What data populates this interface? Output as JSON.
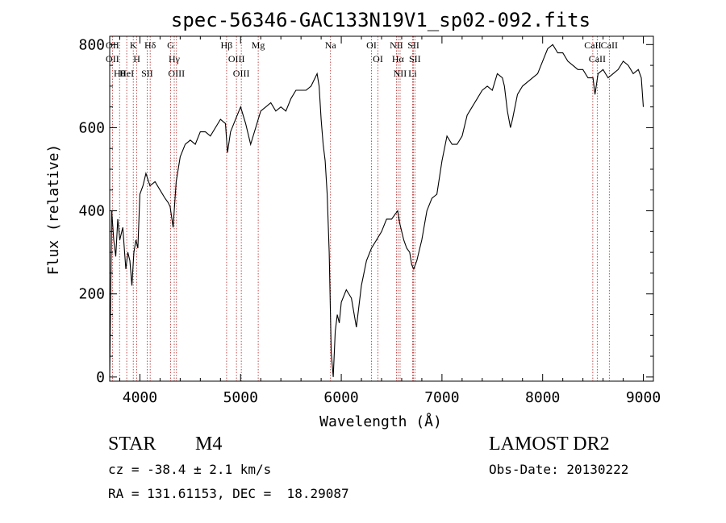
{
  "chart_data": {
    "type": "line",
    "title": "spec-56346-GAC133N19V1_sp02-092.fits",
    "xlabel": "Wavelength (Å)",
    "ylabel": "Flux (relative)",
    "xlim": [
      3700,
      9100
    ],
    "ylim": [
      -10,
      820
    ],
    "xticks": [
      4000,
      5000,
      6000,
      7000,
      8000,
      9000
    ],
    "yticks": [
      0,
      200,
      400,
      600,
      800
    ],
    "line_color": "#000000",
    "marker_color": "#b22222",
    "series": [
      {
        "x": [
          3700,
          3720,
          3740,
          3760,
          3780,
          3800,
          3830,
          3860,
          3880,
          3900,
          3920,
          3940,
          3960,
          3980,
          4000,
          4030,
          4060,
          4100,
          4150,
          4200,
          4250,
          4280,
          4300,
          4330,
          4360,
          4400,
          4450,
          4500,
          4550,
          4600,
          4650,
          4700,
          4750,
          4800,
          4850,
          4870,
          4900,
          4950,
          5000,
          5050,
          5100,
          5150,
          5200,
          5250,
          5300,
          5350,
          5400,
          5450,
          5500,
          5550,
          5600,
          5650,
          5700,
          5740,
          5760,
          5780,
          5800,
          5820,
          5840,
          5860,
          5880,
          5900,
          5920,
          5940,
          5960,
          5980,
          6000,
          6050,
          6100,
          6150,
          6200,
          6250,
          6300,
          6350,
          6400,
          6450,
          6500,
          6530,
          6560,
          6580,
          6600,
          6620,
          6650,
          6680,
          6700,
          6720,
          6750,
          6800,
          6850,
          6900,
          6950,
          7000,
          7050,
          7100,
          7150,
          7200,
          7250,
          7300,
          7350,
          7400,
          7450,
          7500,
          7550,
          7600,
          7620,
          7650,
          7680,
          7700,
          7750,
          7800,
          7850,
          7900,
          7950,
          8000,
          8050,
          8100,
          8150,
          8200,
          8250,
          8300,
          8350,
          8400,
          8450,
          8500,
          8520,
          8550,
          8600,
          8650,
          8700,
          8750,
          8800,
          8850,
          8900,
          8950,
          8980,
          9000
        ],
        "values": [
          0,
          400,
          330,
          290,
          380,
          330,
          360,
          260,
          300,
          280,
          220,
          300,
          330,
          310,
          440,
          460,
          490,
          460,
          470,
          450,
          430,
          420,
          410,
          360,
          470,
          530,
          560,
          570,
          560,
          590,
          590,
          580,
          600,
          620,
          610,
          540,
          590,
          620,
          650,
          610,
          560,
          600,
          640,
          650,
          660,
          640,
          650,
          640,
          670,
          690,
          690,
          690,
          700,
          720,
          730,
          700,
          620,
          560,
          520,
          440,
          300,
          60,
          0,
          110,
          150,
          130,
          180,
          210,
          190,
          120,
          220,
          280,
          310,
          330,
          350,
          380,
          380,
          390,
          400,
          370,
          350,
          330,
          310,
          300,
          270,
          260,
          280,
          330,
          400,
          430,
          440,
          520,
          580,
          560,
          560,
          580,
          630,
          650,
          670,
          690,
          700,
          690,
          730,
          720,
          700,
          640,
          600,
          620,
          680,
          700,
          710,
          720,
          730,
          760,
          790,
          800,
          780,
          780,
          760,
          750,
          740,
          740,
          720,
          720,
          680,
          730,
          740,
          720,
          730,
          740,
          760,
          750,
          730,
          740,
          720,
          650
        ]
      }
    ],
    "lines": [
      {
        "x": 3727,
        "labels": [
          "OII",
          "OII"
        ]
      },
      {
        "x": 3798,
        "labels": [
          "Hθ"
        ]
      },
      {
        "x": 3869,
        "labels": [
          "HeI"
        ]
      },
      {
        "x": 3934,
        "labels": [
          "K"
        ]
      },
      {
        "x": 3969,
        "labels": [
          "H"
        ]
      },
      {
        "x": 4072,
        "labels": [
          "SII"
        ]
      },
      {
        "x": 4102,
        "labels": [
          "Hδ"
        ]
      },
      {
        "x": 4305,
        "labels": [
          "G"
        ]
      },
      {
        "x": 4341,
        "labels": [
          "Hγ"
        ]
      },
      {
        "x": 4363,
        "labels": [
          "OIII"
        ]
      },
      {
        "x": 4861,
        "labels": [
          "Hβ"
        ]
      },
      {
        "x": 4959,
        "labels": [
          "OIII"
        ]
      },
      {
        "x": 5007,
        "labels": [
          "OIII"
        ]
      },
      {
        "x": 5175,
        "labels": [
          "Mg"
        ]
      },
      {
        "x": 5893,
        "labels": [
          "Na"
        ]
      },
      {
        "x": 6300,
        "labels": [
          "OI"
        ]
      },
      {
        "x": 6364,
        "labels": [
          "OI"
        ]
      },
      {
        "x": 6548,
        "labels": [
          "NII"
        ]
      },
      {
        "x": 6563,
        "labels": [
          "Hα"
        ]
      },
      {
        "x": 6584,
        "labels": [
          "NII"
        ]
      },
      {
        "x": 6708,
        "labels": [
          "Li"
        ]
      },
      {
        "x": 6717,
        "labels": [
          "SII"
        ]
      },
      {
        "x": 6731,
        "labels": [
          "SII"
        ]
      },
      {
        "x": 8498,
        "labels": [
          "CaII"
        ]
      },
      {
        "x": 8542,
        "labels": [
          "CaII"
        ]
      },
      {
        "x": 8662,
        "labels": [
          "CaII"
        ]
      }
    ]
  },
  "info": {
    "class": "STAR",
    "subclass": "M4",
    "survey": "LAMOST DR2",
    "cz": "cz = -38.4 ± 2.1 km/s",
    "obs_date": "Obs-Date: 20130222",
    "coords": "RA = 131.61153, DEC =  18.29087"
  }
}
